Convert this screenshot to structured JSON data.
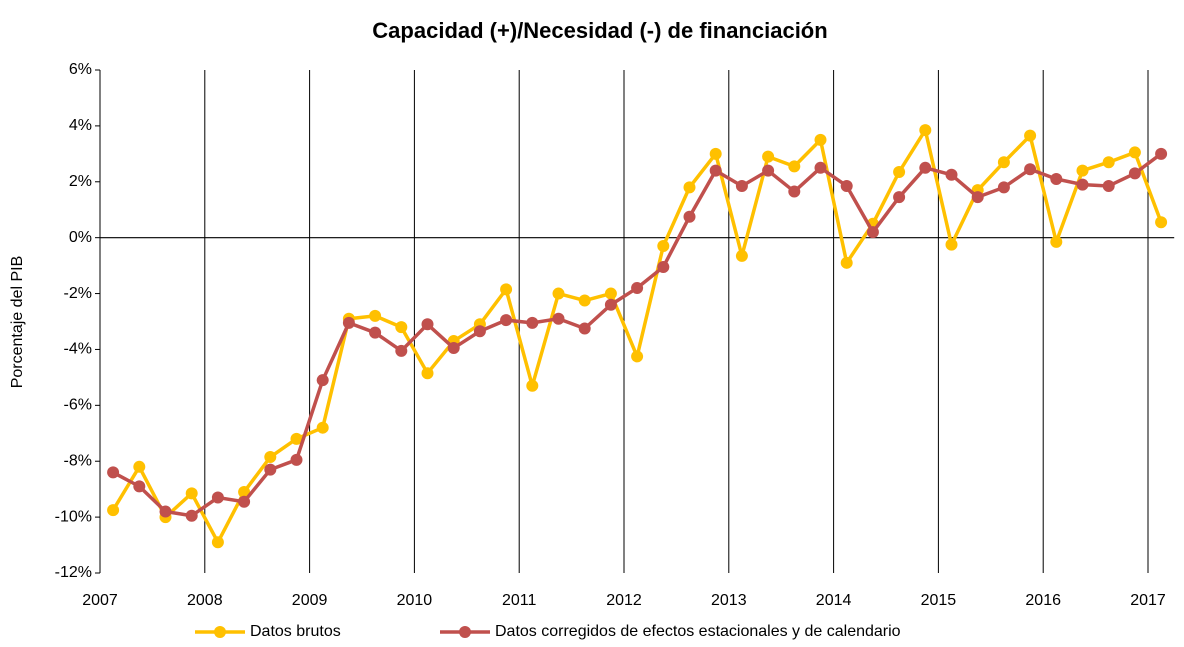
{
  "chart_data": {
    "type": "line",
    "title": "Capacidad (+)/Necesidad (-) de financiación",
    "ylabel": "Porcentaje del PIB",
    "x": [
      2007.125,
      2007.375,
      2007.625,
      2007.875,
      2008.125,
      2008.375,
      2008.625,
      2008.875,
      2009.125,
      2009.375,
      2009.625,
      2009.875,
      2010.125,
      2010.375,
      2010.625,
      2010.875,
      2011.125,
      2011.375,
      2011.625,
      2011.875,
      2012.125,
      2012.375,
      2012.625,
      2012.875,
      2013.125,
      2013.375,
      2013.625,
      2013.875,
      2014.125,
      2014.375,
      2014.625,
      2014.875,
      2015.125,
      2015.375,
      2015.625,
      2015.875,
      2016.125,
      2016.375,
      2016.625,
      2016.875,
      2017.125
    ],
    "series": [
      {
        "name": "Datos brutos",
        "color": "#ffc000",
        "values": [
          -9.75,
          -8.2,
          -10.0,
          -9.15,
          -10.9,
          -9.1,
          -7.85,
          -7.2,
          -6.8,
          -2.9,
          -2.8,
          -3.2,
          -4.85,
          -3.7,
          -3.1,
          -1.85,
          -5.3,
          -2.0,
          -2.25,
          -2.0,
          -4.25,
          -0.3,
          1.8,
          3.0,
          -0.65,
          2.9,
          2.55,
          3.5,
          -0.9,
          0.5,
          2.35,
          3.85,
          -0.25,
          1.7,
          2.7,
          3.65,
          -0.15,
          2.4,
          2.7,
          3.05,
          0.55
        ]
      },
      {
        "name": "Datos corregidos de efectos estacionales y de calendario",
        "color": "#c0504d",
        "values": [
          -8.4,
          -8.9,
          -9.8,
          -9.95,
          -9.3,
          -9.45,
          -8.3,
          -7.95,
          -5.1,
          -3.05,
          -3.4,
          -4.05,
          -3.1,
          -3.95,
          -3.35,
          -2.95,
          -3.05,
          -2.9,
          -3.25,
          -2.4,
          -1.8,
          -1.05,
          0.75,
          2.4,
          1.85,
          2.4,
          1.65,
          2.5,
          1.85,
          0.2,
          1.45,
          2.5,
          2.25,
          1.45,
          1.8,
          2.45,
          2.1,
          1.9,
          1.85,
          2.3,
          3.0
        ]
      }
    ],
    "xlim": [
      2007,
      2017.25
    ],
    "xticks": [
      2007,
      2008,
      2009,
      2010,
      2011,
      2012,
      2013,
      2014,
      2015,
      2016,
      2017
    ],
    "ylim": [
      -12,
      6
    ],
    "yticks": [
      {
        "value": -12,
        "label": "-12%"
      },
      {
        "value": -10,
        "label": "-10%"
      },
      {
        "value": -8,
        "label": "-8%"
      },
      {
        "value": -6,
        "label": "-6%"
      },
      {
        "value": -4,
        "label": "-4%"
      },
      {
        "value": -2,
        "label": "-2%"
      },
      {
        "value": 0,
        "label": "0%"
      },
      {
        "value": 2,
        "label": "2%"
      },
      {
        "value": 4,
        "label": "4%"
      },
      {
        "value": 6,
        "label": "6%"
      }
    ],
    "grid": "x",
    "legend": "bottom"
  }
}
